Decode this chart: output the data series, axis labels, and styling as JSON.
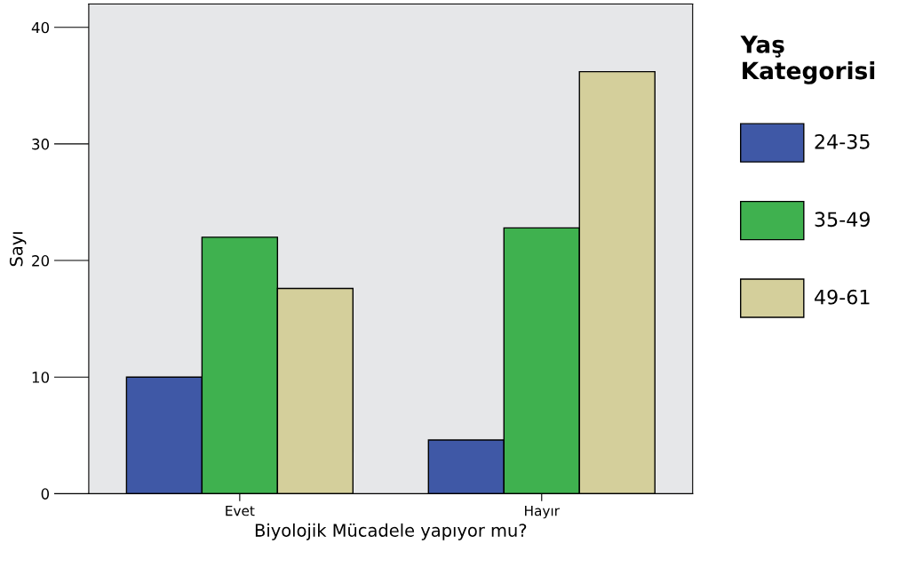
{
  "chart_data": {
    "type": "bar",
    "xlabel": "Biyolojik Mücadele yapıyor mu?",
    "ylabel": "Sayı",
    "legend_title": "Yaş\nKategorisi",
    "categories": [
      "Evet",
      "Hayır"
    ],
    "series": [
      {
        "name": "24-35",
        "color": "#3f58a6",
        "values": [
          10,
          4.6
        ]
      },
      {
        "name": "35-49",
        "color": "#3fb14f",
        "values": [
          22,
          22.8
        ]
      },
      {
        "name": "49-61",
        "color": "#d4cf9b",
        "values": [
          17.6,
          36.2
        ]
      }
    ],
    "ylim": [
      0,
      42
    ],
    "yticks": [
      0,
      10,
      20,
      30,
      40
    ],
    "grid": false,
    "legend": "right"
  }
}
